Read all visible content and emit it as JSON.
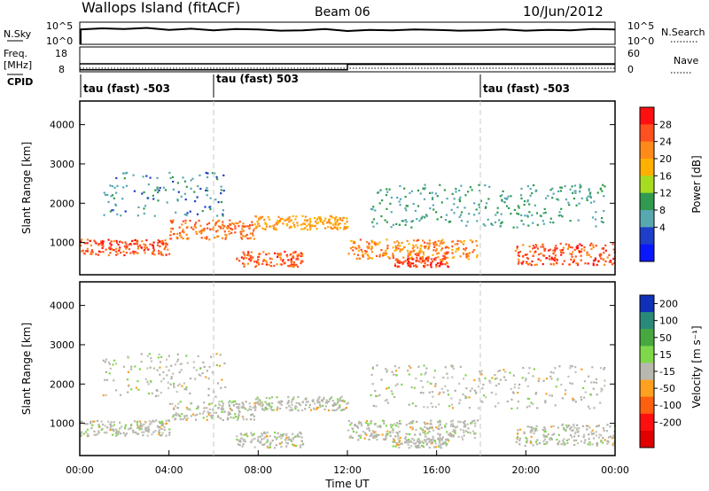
{
  "header": {
    "station": "Wallops Island (fitACF)",
    "beam": "Beam 06",
    "date": "10/Jun/2012"
  },
  "strip_panels": {
    "nsky": {
      "left_label": "N.Sky",
      "left_ticks": [
        "10^5",
        "10^0"
      ],
      "right_ticks": [
        "10^5",
        "10^0"
      ],
      "right_label": "N.Search"
    },
    "freq": {
      "left_label": "Freq.",
      "left_units": "[MHz]",
      "left_ticks": [
        "18",
        "8"
      ],
      "right_ticks": [
        "60",
        "0"
      ],
      "right_label": "Nave"
    },
    "cpid": {
      "label": "CPID",
      "segments": [
        {
          "label": "tau (fast) -503",
          "start_h": 0
        },
        {
          "label": "tau (fast) 503",
          "start_h": 6
        },
        {
          "label": "tau (fast) -503",
          "start_h": 18
        }
      ]
    }
  },
  "power_colorbar": {
    "title": "Power [dB]",
    "ticks": [
      "28",
      "24",
      "20",
      "16",
      "12",
      "8",
      "4"
    ],
    "colors": [
      "#ff1010",
      "#ff5020",
      "#ff8a1a",
      "#ffb000",
      "#a8dc20",
      "#2f9a50",
      "#58a8b0",
      "#1e3fc8",
      "#0a18ff"
    ]
  },
  "velocity_colorbar": {
    "title": "Velocity [m s⁻¹]",
    "ticks": [
      "200",
      "100",
      "50",
      "15",
      "-15",
      "-50",
      "-100",
      "-200"
    ],
    "colors": [
      "#1030b8",
      "#2a8a7a",
      "#48a840",
      "#7fd84a",
      "#b8b8b0",
      "#ffa020",
      "#ff6010",
      "#ff1010",
      "#e00000"
    ]
  },
  "x_axis": {
    "label": "Time UT",
    "ticks": [
      "00:00",
      "04:00",
      "08:00",
      "12:00",
      "16:00",
      "20:00",
      "00:00"
    ]
  },
  "chart_data": {
    "type": "heatmap",
    "x_range_hours": [
      0,
      24
    ],
    "y_range_km": [
      180,
      4600
    ],
    "ylabel": "Slant Range [km]",
    "yticks": [
      "4000",
      "3000",
      "2000",
      "1000"
    ],
    "ytick_values": [
      4000,
      3000,
      2000,
      1000
    ],
    "nsky_trace": [
      [
        0,
        3.8
      ],
      [
        1,
        4.1
      ],
      [
        2,
        3.9
      ],
      [
        3,
        4.2
      ],
      [
        4,
        3.7
      ],
      [
        5,
        4.0
      ],
      [
        6,
        3.6
      ],
      [
        7,
        3.9
      ],
      [
        8,
        3.8
      ],
      [
        9,
        3.5
      ],
      [
        10,
        3.6
      ],
      [
        11,
        3.9
      ],
      [
        12,
        3.4
      ],
      [
        13,
        3.7
      ],
      [
        14,
        3.6
      ],
      [
        15,
        3.8
      ],
      [
        16,
        3.7
      ],
      [
        17,
        3.5
      ],
      [
        18,
        3.6
      ],
      [
        19,
        3.8
      ],
      [
        20,
        3.5
      ],
      [
        21,
        3.7
      ],
      [
        22,
        3.6
      ],
      [
        23,
        3.9
      ],
      [
        24,
        3.8
      ]
    ],
    "nave_step": [
      [
        0,
        5
      ],
      [
        12,
        5
      ],
      [
        12,
        18
      ],
      [
        24,
        18
      ]
    ],
    "echo_bands": [
      {
        "t0": 0.0,
        "t1": 4.0,
        "r0": 700,
        "r1": 1100,
        "power_db": 26
      },
      {
        "t0": 4.0,
        "t1": 7.8,
        "r0": 1100,
        "r1": 1600,
        "power_db": 24
      },
      {
        "t0": 7.8,
        "t1": 12.0,
        "r0": 1350,
        "r1": 1700,
        "power_db": 20
      },
      {
        "t0": 7.0,
        "t1": 10.0,
        "r0": 400,
        "r1": 800,
        "power_db": 25
      },
      {
        "t0": 12.0,
        "t1": 17.8,
        "r0": 600,
        "r1": 1100,
        "power_db": 22
      },
      {
        "t0": 14.0,
        "t1": 16.5,
        "r0": 400,
        "r1": 650,
        "power_db": 27
      },
      {
        "t0": 19.5,
        "t1": 24.0,
        "r0": 450,
        "r1": 1000,
        "power_db": 26
      },
      {
        "t0": 1.0,
        "t1": 6.5,
        "r0": 1700,
        "r1": 2800,
        "power_db": 6
      },
      {
        "t0": 13.0,
        "t1": 23.5,
        "r0": 1400,
        "r1": 2500,
        "power_db": 8
      }
    ]
  }
}
